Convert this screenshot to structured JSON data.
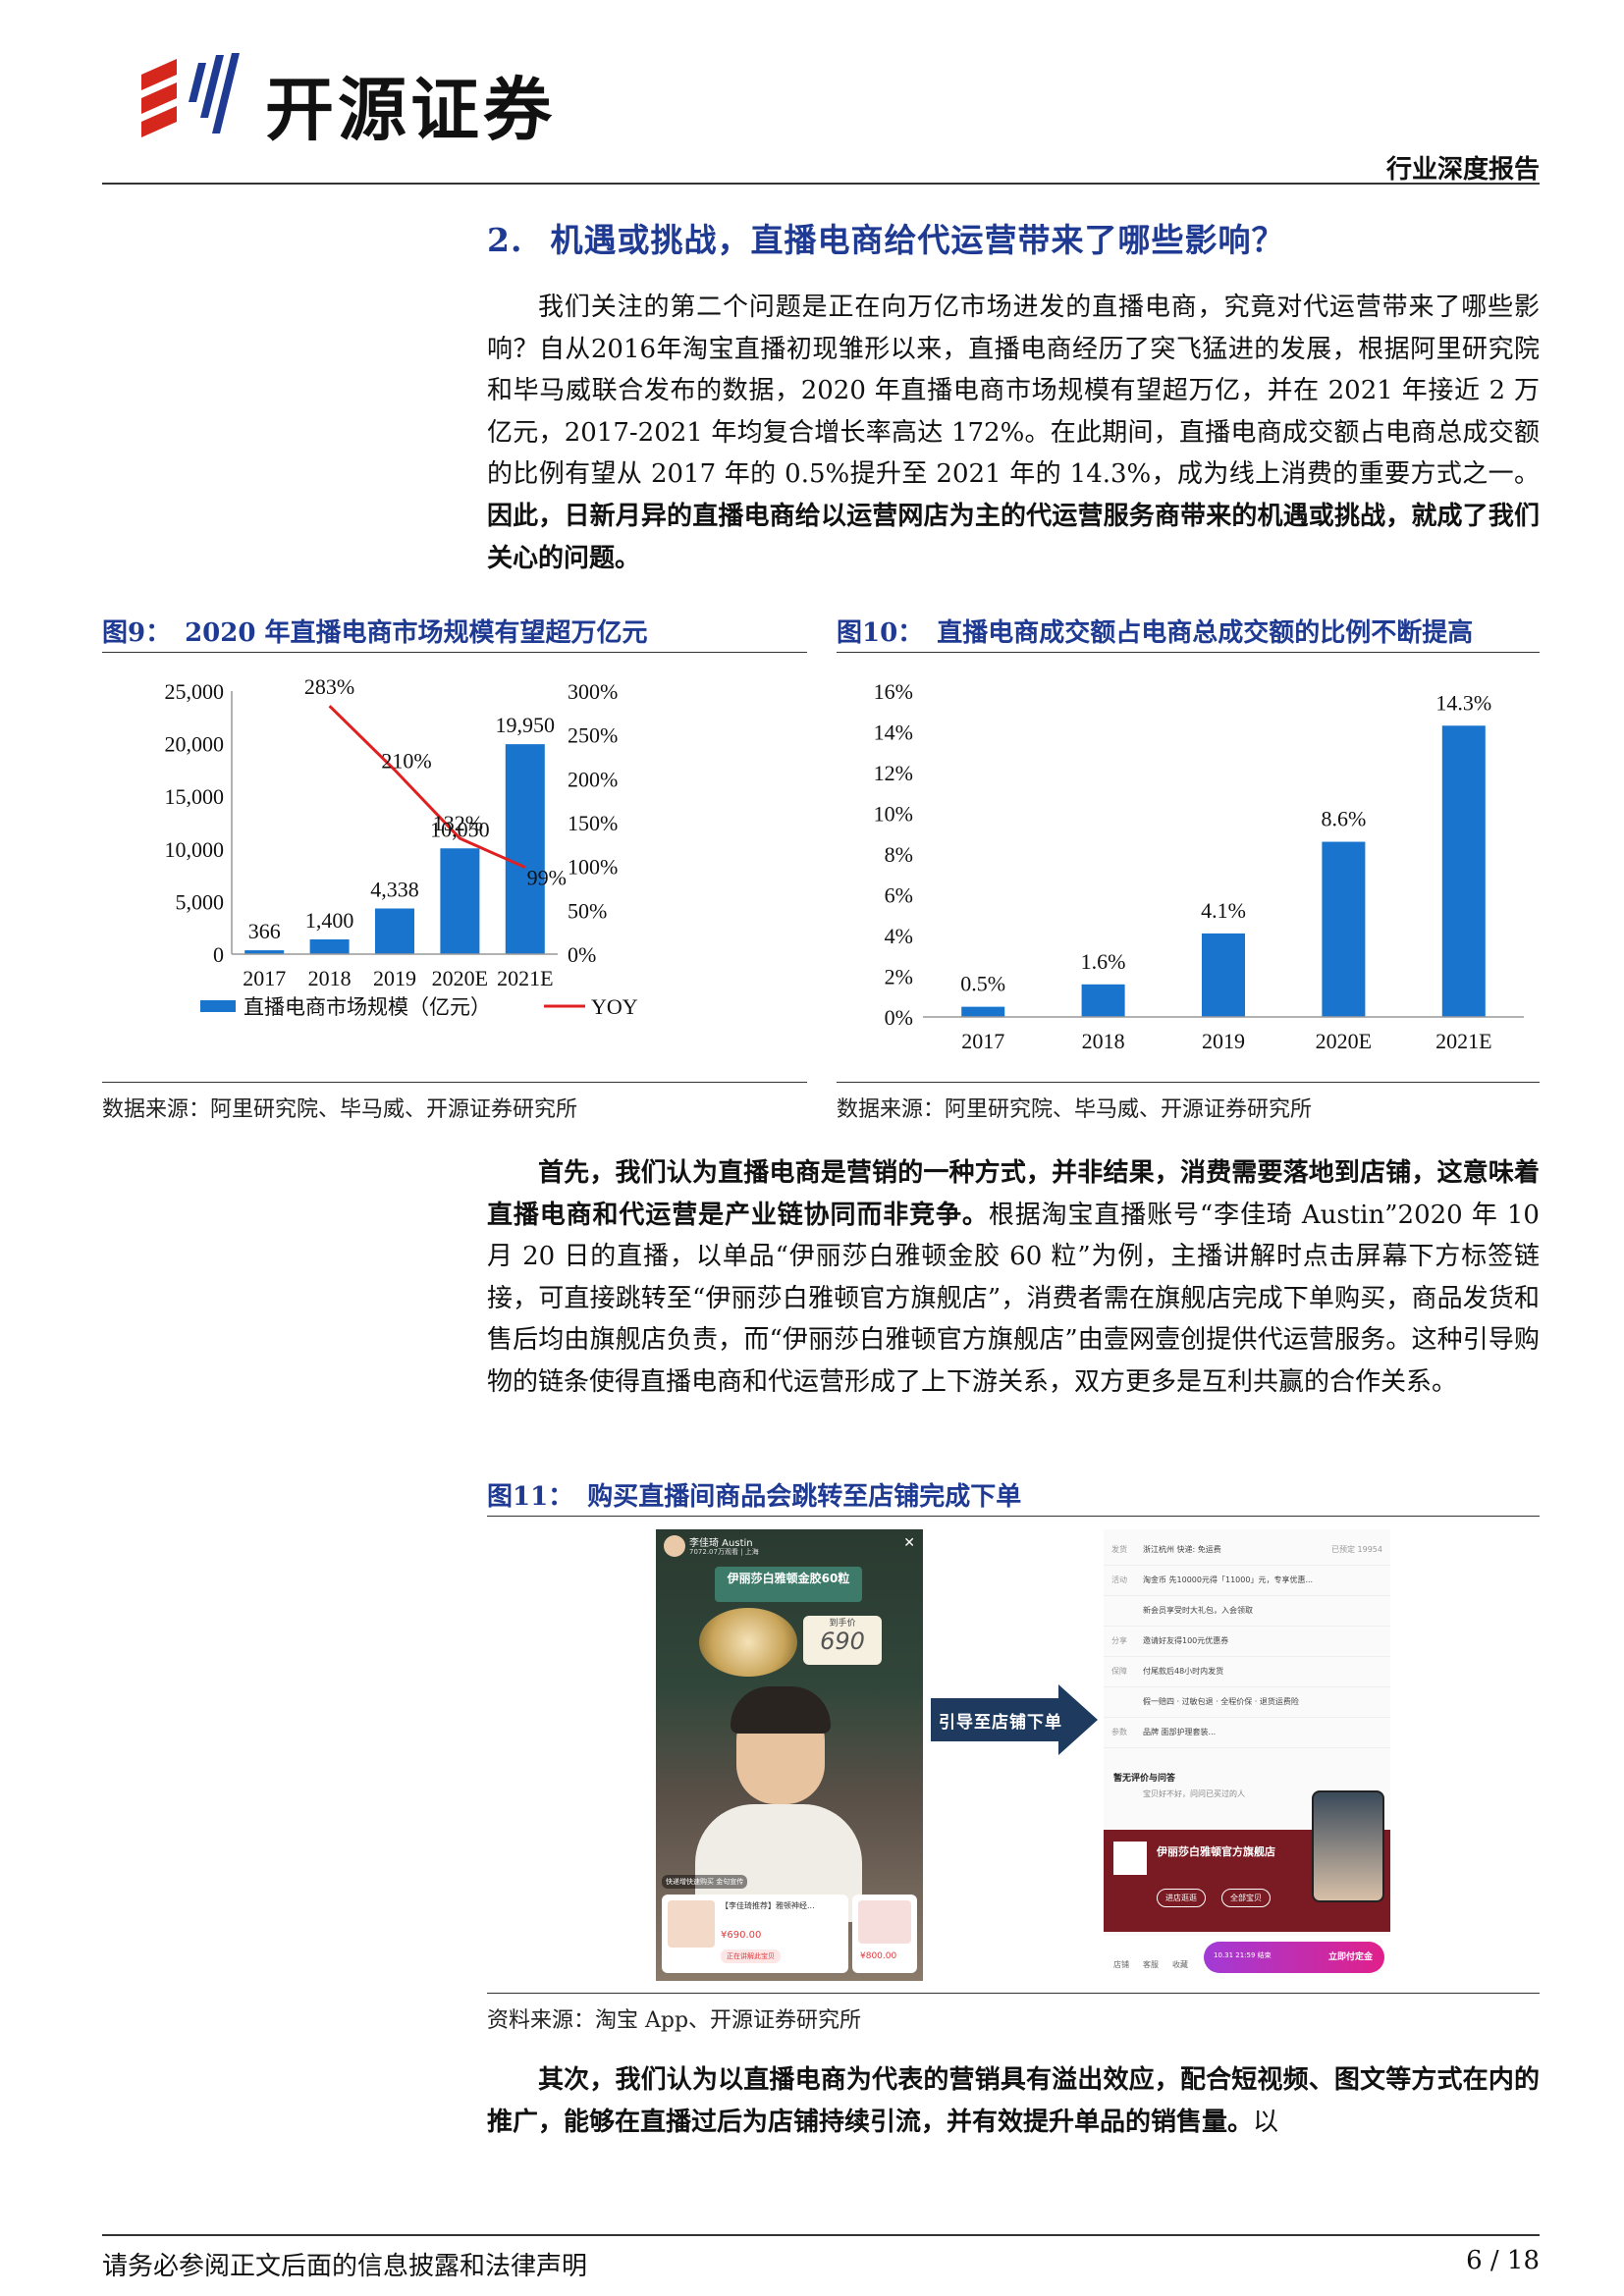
{
  "header": {
    "company_name": "开源证券",
    "report_type": "行业深度报告"
  },
  "section": {
    "number": "2.",
    "title": "机遇或挑战，直播电商给代运营带来了哪些影响？"
  },
  "paragraph1": {
    "plain": "我们关注的第二个问题是正在向万亿市场进发的直播电商，究竟对代运营带来了哪些影响？自从2016年淘宝直播初现雏形以来，直播电商经历了突飞猛进的发展，根据阿里研究院和毕马威联合发布的数据，2020 年直播电商市场规模有望超万亿，并在 2021 年接近 2 万亿元，2017-2021 年均复合增长率高达 172%。在此期间，直播电商成交额占电商总成交额的比例有望从 2017 年的 0.5%提升至 2021 年的 14.3%，成为线上消费的重要方式之一。",
    "bold": "因此，日新月异的直播电商给以运营网店为主的代运营服务商带来的机遇或挑战，就成了我们关心的问题。"
  },
  "figure9": {
    "label": "图9：",
    "title": "2020 年直播电商市场规模有望超万亿元",
    "source": "数据来源：阿里研究院、毕马威、开源证券研究所",
    "legend_bar": "直播电商市场规模（亿元）",
    "legend_line": "YOY"
  },
  "figure10": {
    "label": "图10：",
    "title": "直播电商成交额占电商总成交额的比例不断提高",
    "source": "数据来源：阿里研究院、毕马威、开源证券研究所"
  },
  "chart_data": [
    {
      "type": "bar",
      "categories": [
        "2017",
        "2018",
        "2019",
        "2020E",
        "2021E"
      ],
      "series": [
        {
          "name": "直播电商市场规模（亿元）",
          "type": "bar",
          "axis": "left",
          "values": [
            366,
            1400,
            4338,
            10050,
            19950
          ],
          "labels": [
            "366",
            "1,400",
            "4,338",
            "10,050",
            "19,950"
          ],
          "color": "#1874cd"
        },
        {
          "name": "YOY",
          "type": "line",
          "axis": "right",
          "values": [
            null,
            283,
            210,
            132,
            99
          ],
          "labels": [
            "",
            "283%",
            "210%",
            "132%",
            "99%"
          ],
          "color": "#e02020"
        }
      ],
      "y_left_ticks": [
        "0",
        "5,000",
        "10,000",
        "15,000",
        "20,000",
        "25,000"
      ],
      "ylim_left": [
        0,
        25000
      ],
      "y_right_ticks": [
        "0%",
        "50%",
        "100%",
        "150%",
        "200%",
        "250%",
        "300%"
      ],
      "ylim_right": [
        0,
        300
      ],
      "legend_position": "bottom"
    },
    {
      "type": "bar",
      "categories": [
        "2017",
        "2018",
        "2019",
        "2020E",
        "2021E"
      ],
      "values": [
        0.5,
        1.6,
        4.1,
        8.6,
        14.3
      ],
      "labels": [
        "0.5%",
        "1.6%",
        "4.1%",
        "8.6%",
        "14.3%"
      ],
      "y_ticks": [
        "0%",
        "2%",
        "4%",
        "6%",
        "8%",
        "10%",
        "12%",
        "14%",
        "16%"
      ],
      "ylim": [
        0,
        16
      ],
      "color": "#1874cd"
    }
  ],
  "paragraph2": {
    "bold": "首先，我们认为直播电商是营销的一种方式，并非结果，消费需要落地到店铺，这意味着直播电商和代运营是产业链协同而非竞争。",
    "plain": "根据淘宝直播账号“李佳琦 Austin”2020 年 10 月 20 日的直播，以单品“伊丽莎白雅顿金胶 60 粒”为例，主播讲解时点击屏幕下方标签链接，可直接跳转至“伊丽莎白雅顿官方旗舰店”，消费者需在旗舰店完成下单购买，商品发货和售后均由旗舰店负责，而“伊丽莎白雅顿官方旗舰店”由壹网壹创提供代运营服务。这种引导购物的链条使得直播电商和代运营形成了上下游关系，双方更多是互利共赢的合作关系。"
  },
  "figure11": {
    "label": "图11：",
    "title": "购买直播间商品会跳转至店铺完成下单",
    "source": "资料来源：淘宝 App、开源证券研究所",
    "arrow_text": "引导至店铺下单",
    "left_shot": {
      "streamer": "李佳琦 Austin",
      "viewers": "7072.07万观看 | 上海",
      "product_banner": "伊丽莎白雅顿金胶60粒",
      "product_sub": "到手价",
      "price_big": "690",
      "tag": "快递增快速购买 金句宣传",
      "card1_title": "【李佳琦推荐】雅顿神经...",
      "card1_price": "¥690.00",
      "card1_btn": "正在讲解此宝贝",
      "card2_price": "¥800.00"
    },
    "right_shot": {
      "rows": [
        {
          "k": "发货",
          "v": "浙江杭州   快递: 免运费",
          "extra": "已预定 19954"
        },
        {
          "k": "活动",
          "v": "淘金币  先10000元得「11000」元，专享优惠..."
        },
        {
          "k": "",
          "v": "新会员享受时大礼包，入会领取"
        },
        {
          "k": "分享",
          "v": "邀请好友得100元优惠券"
        },
        {
          "k": "保障",
          "v": "付尾款后48小时内发货"
        },
        {
          "k": "",
          "v": "假一赔四 · 过敏包退 · 全程价保 · 退货运费险"
        },
        {
          "k": "参数",
          "v": "品牌  面部护理套装..."
        }
      ],
      "review_title": "暂无评价与问答",
      "review_sub": "宝贝好不好，问问已买过的人",
      "store_name": "伊丽莎白雅顿官方旗舰店",
      "store_btn1": "进店逛逛",
      "store_btn2": "全部宝贝",
      "bottom_label1": "店铺",
      "bottom_label2": "客服",
      "bottom_label3": "收藏",
      "bottom_time": "10.31 21:59 结束",
      "bottom_btn": "立即付定金"
    }
  },
  "paragraph3": {
    "bold": "其次，我们认为以直播电商为代表的营销具有溢出效应，配合短视频、图文等方式在内的推广，能够在直播过后为店铺持续引流，并有效提升单品的销售量。",
    "plain": "以"
  },
  "footer": {
    "disclaimer": "请务必参阅正文后面的信息披露和法律声明",
    "page": "6 / 18"
  },
  "colors": {
    "brand_red": "#d6271c",
    "title_blue": "#1f3a93",
    "bar_blue": "#1874cd",
    "line_red": "#e02020"
  }
}
